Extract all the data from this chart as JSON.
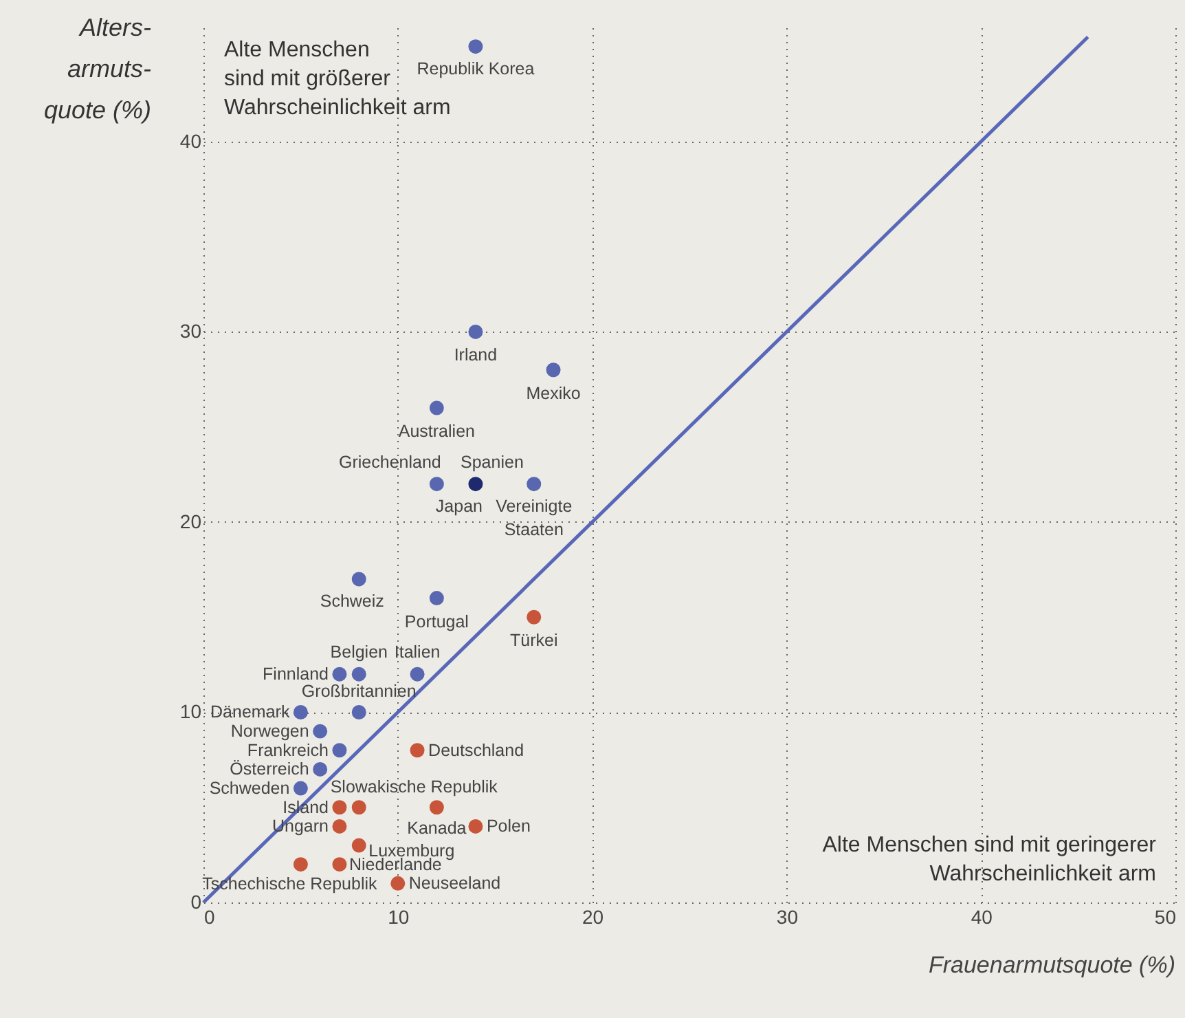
{
  "chart_data": {
    "type": "scatter",
    "xlabel": "Frauenarmutsquote (%)",
    "ylabel": "Alters-\narmuts-\nquote (%)",
    "xlim": [
      0,
      50
    ],
    "ylim": [
      0,
      46
    ],
    "xticks": [
      0,
      10,
      20,
      30,
      40,
      50
    ],
    "yticks": [
      0,
      10,
      20,
      30,
      40
    ],
    "grid": true,
    "legend": false,
    "marker": "circle",
    "series": [
      {
        "colors": [
          "#5867b0",
          "#5867b0",
          "#5867b0",
          "#5867b0",
          "#5867b0",
          "#1f2a6e",
          "#5867b0",
          "#5867b0",
          "#5867b0",
          "#5867b0",
          "#5867b0",
          "#5867b0",
          "#5867b0",
          "#5867b0",
          "#5867b0",
          "#5867b0",
          "#5867b0",
          "#5867b0",
          "#5867b0"
        ],
        "x": [
          14,
          14,
          18,
          12,
          12,
          14,
          null,
          17,
          8,
          12,
          7,
          8,
          11,
          5,
          8,
          6,
          7,
          6,
          5
        ],
        "values": [
          45,
          30,
          28,
          26,
          22,
          22,
          null,
          22,
          17,
          16,
          12,
          12,
          12,
          10,
          10,
          9,
          8,
          7,
          6
        ]
      },
      {
        "color": "#c8553a",
        "x": [
          17,
          11,
          7,
          8,
          12,
          14,
          7,
          8,
          7,
          5,
          10
        ],
        "values": [
          15,
          8,
          5,
          5,
          5,
          4,
          4,
          3,
          2,
          2,
          1
        ]
      },
      {
        "type": "line",
        "marker": "none",
        "color": "#5867b8",
        "x": [
          0,
          45.5
        ],
        "values": [
          0,
          45.5
        ]
      }
    ],
    "annotations": [
      {
        "text": "Republik Korea",
        "x": 14,
        "y": 45
      },
      {
        "text": "Irland",
        "x": 14,
        "y": 30
      },
      {
        "text": "Mexiko",
        "x": 18,
        "y": 28
      },
      {
        "text": "Australien",
        "x": 12,
        "y": 26
      },
      {
        "text": "Griechenland",
        "x": 12,
        "y": 22
      },
      {
        "text": "Spanien",
        "x": 14,
        "y": 22
      },
      {
        "text": "Japan",
        "x": 14,
        "y": 22
      },
      {
        "text": "Vereinigte\nStaaten",
        "x": 17,
        "y": 22
      },
      {
        "text": "Schweiz",
        "x": 8,
        "y": 17
      },
      {
        "text": "Portugal",
        "x": 12,
        "y": 16
      },
      {
        "text": "Finnland",
        "x": 7,
        "y": 12
      },
      {
        "text": "Belgien",
        "x": 8,
        "y": 12
      },
      {
        "text": "Italien",
        "x": 11,
        "y": 12
      },
      {
        "text": "Dänemark",
        "x": 5,
        "y": 10
      },
      {
        "text": "Großbritannien",
        "x": 8,
        "y": 10
      },
      {
        "text": "Norwegen",
        "x": 6,
        "y": 9
      },
      {
        "text": "Frankreich",
        "x": 7,
        "y": 8
      },
      {
        "text": "Österreich",
        "x": 6,
        "y": 7
      },
      {
        "text": "Schweden",
        "x": 5,
        "y": 6
      },
      {
        "text": "Türkei",
        "x": 17,
        "y": 15
      },
      {
        "text": "Deutschland",
        "x": 11,
        "y": 8
      },
      {
        "text": "Island",
        "x": 7,
        "y": 5
      },
      {
        "text": "Slowakische Republik",
        "x": 8,
        "y": 5
      },
      {
        "text": "Kanada",
        "x": 12,
        "y": 5
      },
      {
        "text": "Polen",
        "x": 14,
        "y": 4
      },
      {
        "text": "Ungarn",
        "x": 7,
        "y": 4
      },
      {
        "text": "Luxemburg",
        "x": 8,
        "y": 3
      },
      {
        "text": "Niederlande",
        "x": 7,
        "y": 2
      },
      {
        "text": "Tschechische Republik",
        "x": 5,
        "y": 2
      },
      {
        "text": "Neuseeland",
        "x": 10,
        "y": 1
      },
      "Alte Menschen\nsind mit größerer\nWahrscheinlichkeit arm",
      "Alte Menschen sind mit geringerer\nWahrscheinlichkeit arm"
    ]
  }
}
